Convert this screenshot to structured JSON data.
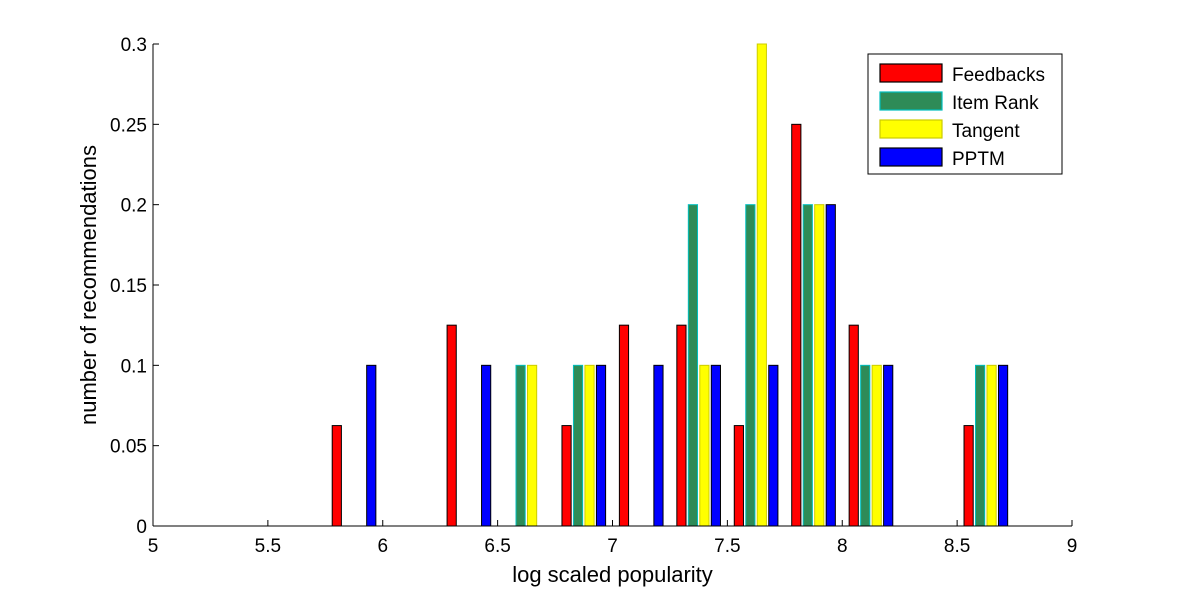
{
  "chart_data": {
    "type": "bar",
    "xlabel": "log scaled popularity",
    "ylabel": "number of recommendations",
    "xlim": [
      5,
      9
    ],
    "ylim": [
      0,
      0.3
    ],
    "xticks": [
      "5",
      "5.5",
      "6",
      "6.5",
      "7",
      "7.5",
      "8",
      "8.5",
      "9"
    ],
    "yticks": [
      "0",
      "0.05",
      "0.1",
      "0.15",
      "0.2",
      "0.25",
      "0.3"
    ],
    "grid": false,
    "legend_position": "top-right",
    "bin_centers": [
      5.125,
      5.375,
      5.625,
      5.875,
      6.125,
      6.375,
      6.625,
      6.875,
      7.125,
      7.375,
      7.625,
      7.875,
      8.125,
      8.375,
      8.625,
      8.875
    ],
    "series": [
      {
        "name": "Feedbacks",
        "color": "#ff0000",
        "edge": "#000000",
        "values": [
          0,
          0,
          0,
          0.0625,
          0,
          0.125,
          0,
          0.0625,
          0.125,
          0.125,
          0.0625,
          0.25,
          0.125,
          0,
          0.0625,
          0
        ]
      },
      {
        "name": "Item Rank",
        "color": "#2e8b57",
        "edge": "#00bfbf",
        "values": [
          0,
          0,
          0,
          0,
          0,
          0,
          0.1,
          0.1,
          0,
          0.2,
          0.2,
          0.2,
          0.1,
          0,
          0.1,
          0
        ]
      },
      {
        "name": "Tangent",
        "color": "#ffff00",
        "edge": "#cccc00",
        "values": [
          0,
          0,
          0,
          0,
          0,
          0,
          0.1,
          0.1,
          0,
          0.1,
          0.3,
          0.2,
          0.1,
          0,
          0.1,
          0
        ]
      },
      {
        "name": "PPTM",
        "color": "#0000ff",
        "edge": "#000000",
        "values": [
          0,
          0,
          0,
          0.1,
          0,
          0.1,
          0,
          0.1,
          0.1,
          0.1,
          0.1,
          0.2,
          0.1,
          0,
          0.1,
          0
        ]
      }
    ]
  }
}
